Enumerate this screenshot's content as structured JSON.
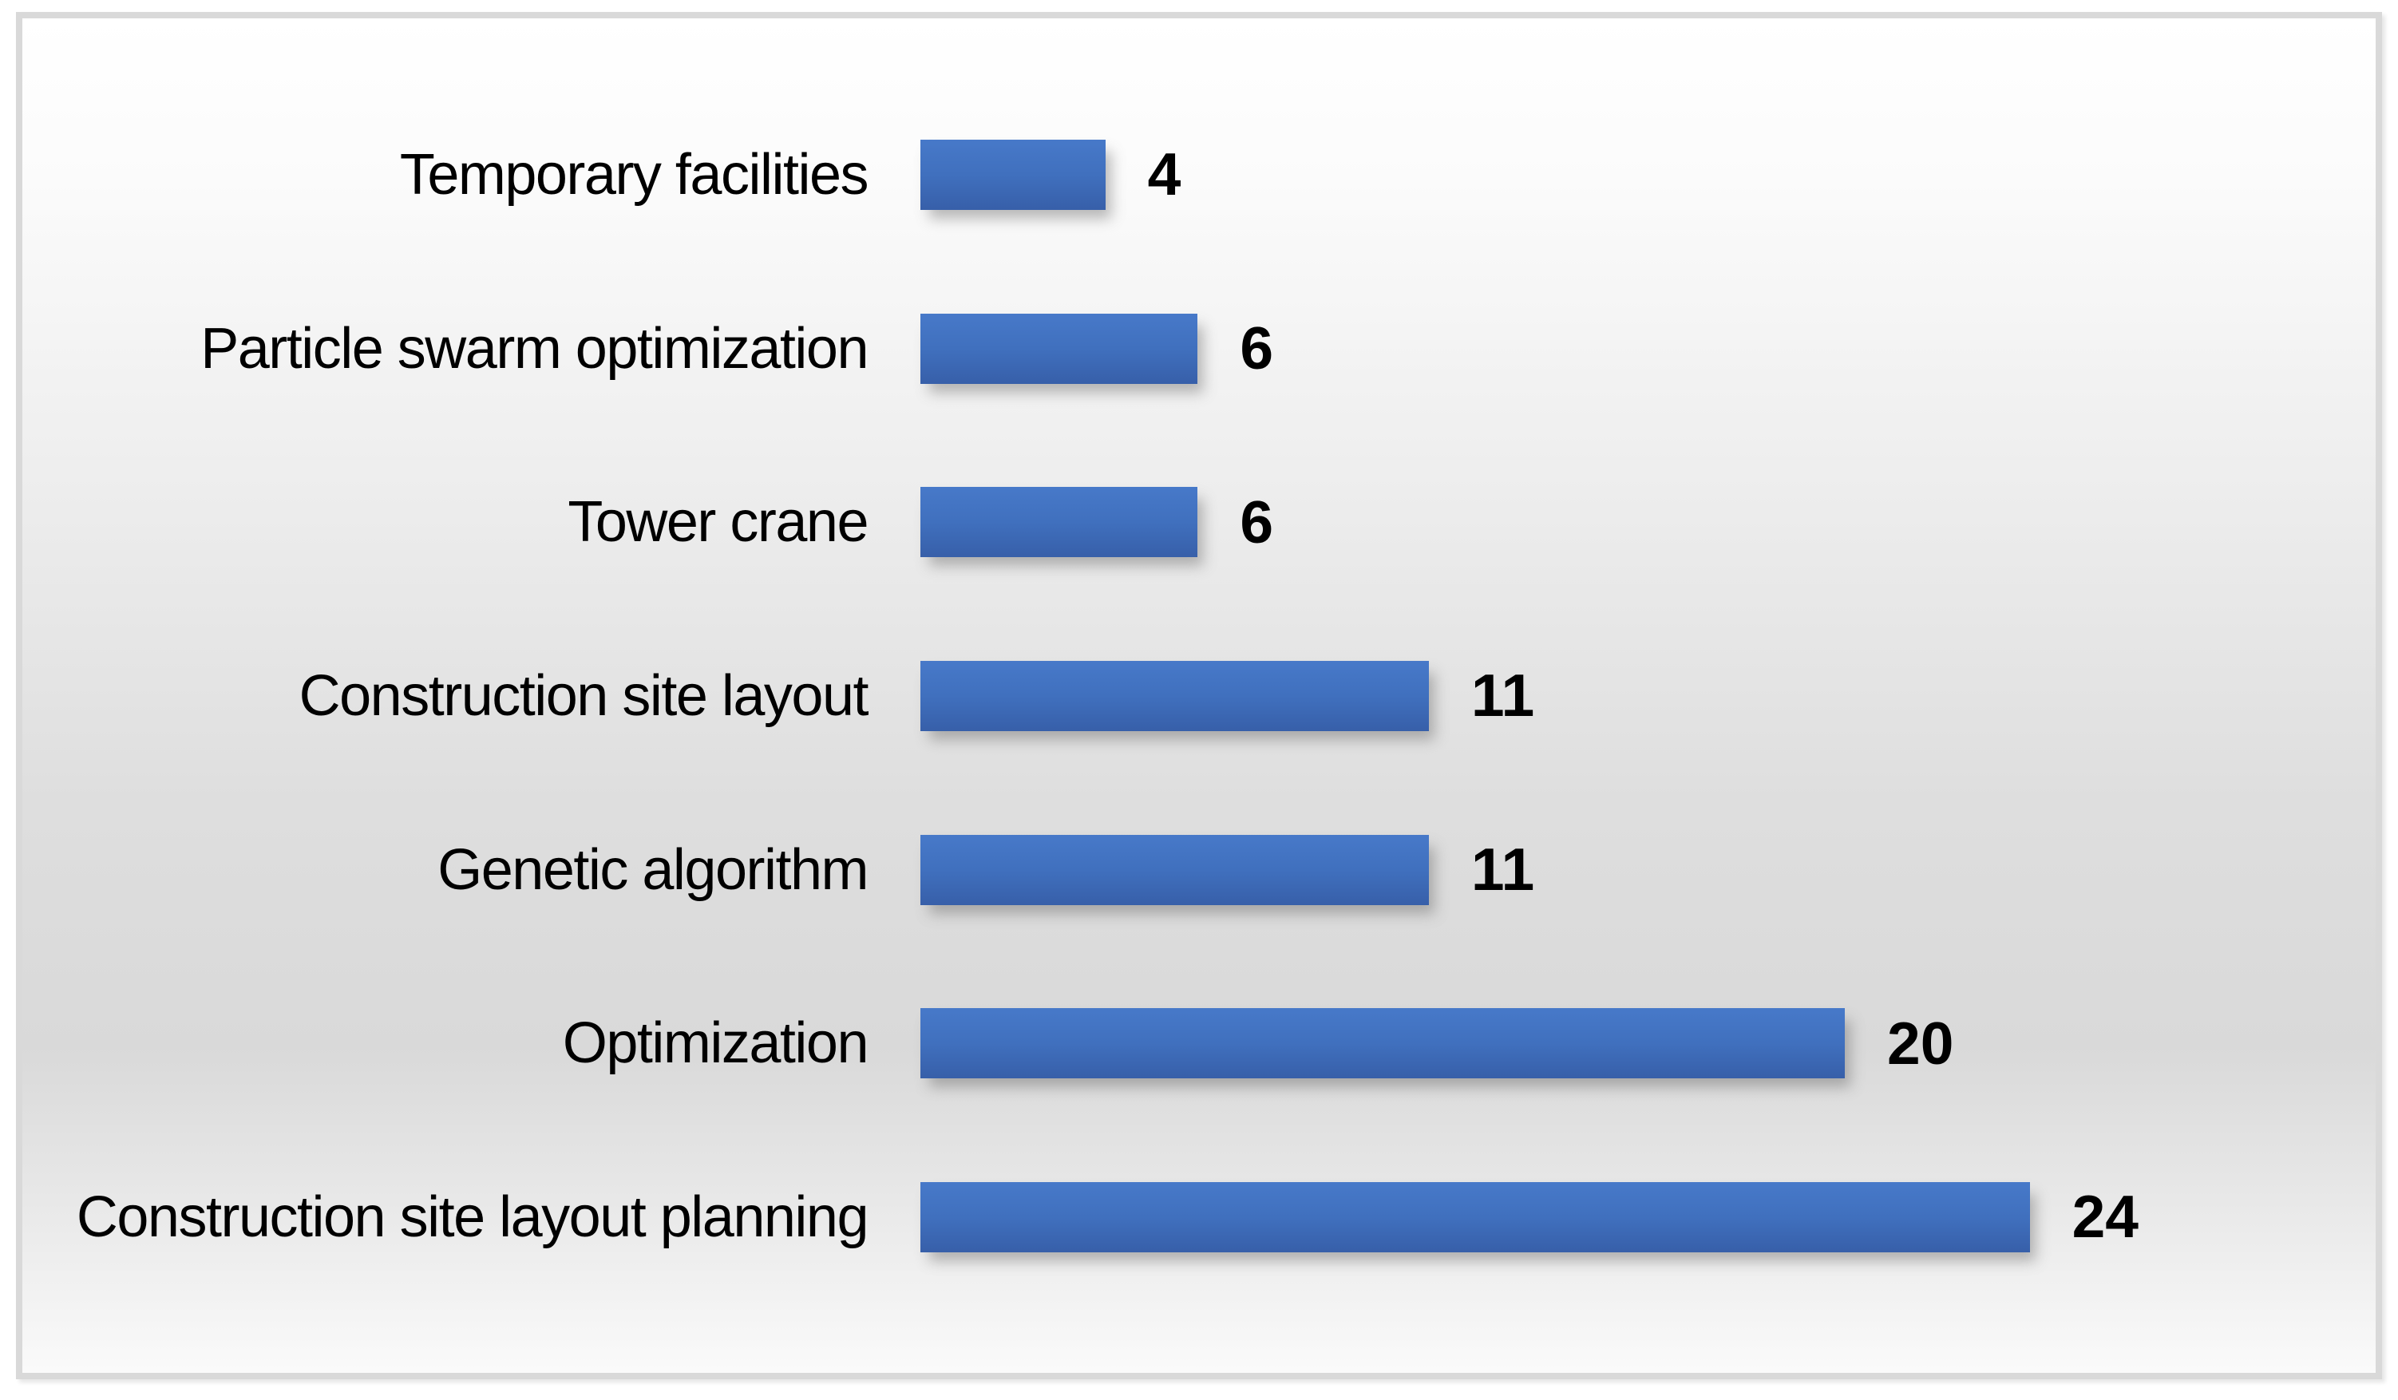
{
  "chart_data": {
    "type": "bar",
    "orientation": "horizontal",
    "categories": [
      "Temporary facilities",
      "Particle swarm optimization",
      "Tower crane",
      "Construction site layout",
      "Genetic algorithm",
      "Optimization",
      "Construction site layout planning"
    ],
    "values": [
      4,
      6,
      6,
      11,
      11,
      20,
      24
    ],
    "xlim": [
      0,
      24
    ],
    "grid": false,
    "legend": false,
    "axes_visible": false,
    "data_label_position": "outside-end",
    "colors": {
      "bar_gradient_top": "#4779c9",
      "bar_gradient_bottom": "#375fa9",
      "text": "#000000",
      "frame_border": "#d9d9d9",
      "background_mid_light": "#dedede",
      "background_mid": "#d9d9d9",
      "background_bottom": "#fafafa"
    }
  }
}
